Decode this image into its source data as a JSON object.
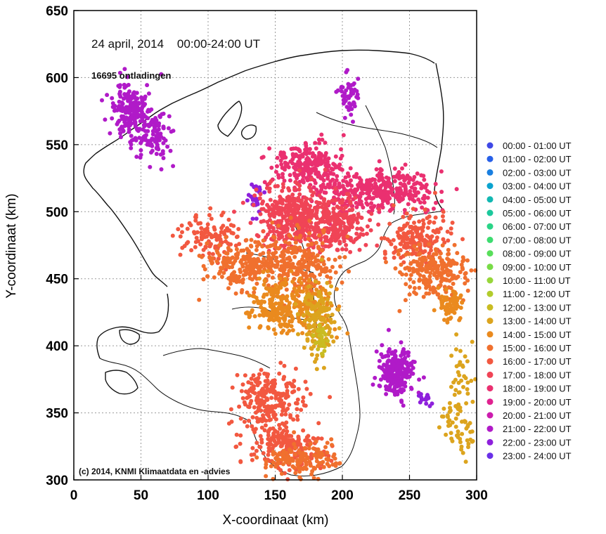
{
  "chart_data": {
    "type": "scatter",
    "title": "24 april, 2014    00:00-24:00 UT",
    "subtitle": "16695 ontladingen",
    "annotation": "(c) 2014, KNMI Klimaatdata en -advies",
    "xlabel": "X-coordinaat (km)",
    "ylabel": "Y-coordinaat (km)",
    "xlim": [
      0,
      300
    ],
    "ylim": [
      300,
      650
    ],
    "xticks": [
      0,
      50,
      100,
      150,
      200,
      250,
      300
    ],
    "yticks": [
      300,
      350,
      400,
      450,
      500,
      550,
      600,
      650
    ],
    "grid": true,
    "legend_position": "right",
    "legend": [
      {
        "label": "00:00 - 01:00 UT",
        "color": "#3f48e6"
      },
      {
        "label": "01:00 - 02:00 UT",
        "color": "#2860e8"
      },
      {
        "label": "02:00 - 03:00 UT",
        "color": "#1a7fe0"
      },
      {
        "label": "03:00 - 04:00 UT",
        "color": "#0aa3cf"
      },
      {
        "label": "04:00 - 05:00 UT",
        "color": "#12b8b2"
      },
      {
        "label": "05:00 - 06:00 UT",
        "color": "#1cc89c"
      },
      {
        "label": "06:00 - 07:00 UT",
        "color": "#2ad487"
      },
      {
        "label": "07:00 - 08:00 UT",
        "color": "#3ddc70"
      },
      {
        "label": "08:00 - 09:00 UT",
        "color": "#58de5a"
      },
      {
        "label": "09:00 - 10:00 UT",
        "color": "#78dc47"
      },
      {
        "label": "10:00 - 11:00 UT",
        "color": "#97d63a"
      },
      {
        "label": "11:00 - 12:00 UT",
        "color": "#b2cc2c"
      },
      {
        "label": "12:00 - 13:00 UT",
        "color": "#c9bc22"
      },
      {
        "label": "13:00 - 14:00 UT",
        "color": "#dca41e"
      },
      {
        "label": "14:00 - 15:00 UT",
        "color": "#ea8a1e"
      },
      {
        "label": "15:00 - 16:00 UT",
        "color": "#f0702e"
      },
      {
        "label": "16:00 - 17:00 UT",
        "color": "#f25840"
      },
      {
        "label": "17:00 - 18:00 UT",
        "color": "#f04456"
      },
      {
        "label": "18:00 - 19:00 UT",
        "color": "#ea3070"
      },
      {
        "label": "19:00 - 20:00 UT",
        "color": "#e02290"
      },
      {
        "label": "20:00 - 21:00 UT",
        "color": "#cc1cae"
      },
      {
        "label": "21:00 - 22:00 UT",
        "color": "#b01ac8"
      },
      {
        "label": "22:00 - 23:00 UT",
        "color": "#8e20dc"
      },
      {
        "label": "23:00 - 24:00 UT",
        "color": "#6a30e8"
      }
    ],
    "series": [
      {
        "hour_index": 21,
        "clusters": [
          {
            "center": [
              42,
              575
            ],
            "spread": [
              8,
              11
            ],
            "count": 200
          },
          {
            "center": [
              60,
              556
            ],
            "spread": [
              6,
              8
            ],
            "count": 90
          },
          {
            "center": [
              240,
              380
            ],
            "spread": [
              6,
              9
            ],
            "count": 230
          },
          {
            "center": [
              205,
              585
            ],
            "spread": [
              4,
              8
            ],
            "count": 50
          }
        ]
      },
      {
        "hour_index": 22,
        "clusters": [
          {
            "center": [
              135,
              512
            ],
            "spread": [
              3,
              6
            ],
            "count": 30
          },
          {
            "center": [
              262,
              360
            ],
            "spread": [
              3,
              3
            ],
            "count": 15
          }
        ]
      },
      {
        "hour_index": 18,
        "clusters": [
          {
            "center": [
              175,
              535
            ],
            "spread": [
              12,
              8
            ],
            "count": 220
          },
          {
            "center": [
              215,
              515
            ],
            "spread": [
              18,
              7
            ],
            "count": 220
          },
          {
            "center": [
              245,
              515
            ],
            "spread": [
              15,
              8
            ],
            "count": 150
          }
        ]
      },
      {
        "hour_index": 17,
        "clusters": [
          {
            "center": [
              165,
              495
            ],
            "spread": [
              14,
              12
            ],
            "count": 400
          },
          {
            "center": [
              195,
              490
            ],
            "spread": [
              12,
              9
            ],
            "count": 250
          }
        ]
      },
      {
        "hour_index": 16,
        "clusters": [
          {
            "center": [
              145,
              360
            ],
            "spread": [
              12,
              12
            ],
            "count": 230
          },
          {
            "center": [
              160,
              325
            ],
            "spread": [
              14,
              9
            ],
            "count": 200
          },
          {
            "center": [
              255,
              480
            ],
            "spread": [
              12,
              9
            ],
            "count": 180
          },
          {
            "center": [
              105,
              480
            ],
            "spread": [
              12,
              9
            ],
            "count": 120
          }
        ]
      },
      {
        "hour_index": 15,
        "clusters": [
          {
            "center": [
              165,
              460
            ],
            "spread": [
              15,
              12
            ],
            "count": 280
          },
          {
            "center": [
              125,
              460
            ],
            "spread": [
              14,
              9
            ],
            "count": 180
          },
          {
            "center": [
              270,
              455
            ],
            "spread": [
              14,
              9
            ],
            "count": 220
          },
          {
            "center": [
              170,
              315
            ],
            "spread": [
              14,
              6
            ],
            "count": 130
          }
        ]
      },
      {
        "hour_index": 14,
        "clusters": [
          {
            "center": [
              165,
              430
            ],
            "spread": [
              14,
              9
            ],
            "count": 200
          },
          {
            "center": [
              148,
              430
            ],
            "spread": [
              10,
              10
            ],
            "count": 100
          },
          {
            "center": [
              280,
              430
            ],
            "spread": [
              5,
              6
            ],
            "count": 60
          }
        ]
      },
      {
        "hour_index": 13,
        "clusters": [
          {
            "center": [
              182,
              418
            ],
            "spread": [
              6,
              14
            ],
            "count": 150
          },
          {
            "center": [
              290,
              375
            ],
            "spread": [
              5,
              12
            ],
            "count": 40
          },
          {
            "center": [
              290,
              330
            ],
            "spread": [
              4,
              7
            ],
            "count": 30
          },
          {
            "center": [
              280,
              345
            ],
            "spread": [
              4,
              5
            ],
            "count": 20
          }
        ]
      },
      {
        "hour_index": 12,
        "clusters": [
          {
            "center": [
              185,
              405
            ],
            "spread": [
              3,
              5
            ],
            "count": 25
          }
        ]
      }
    ]
  }
}
